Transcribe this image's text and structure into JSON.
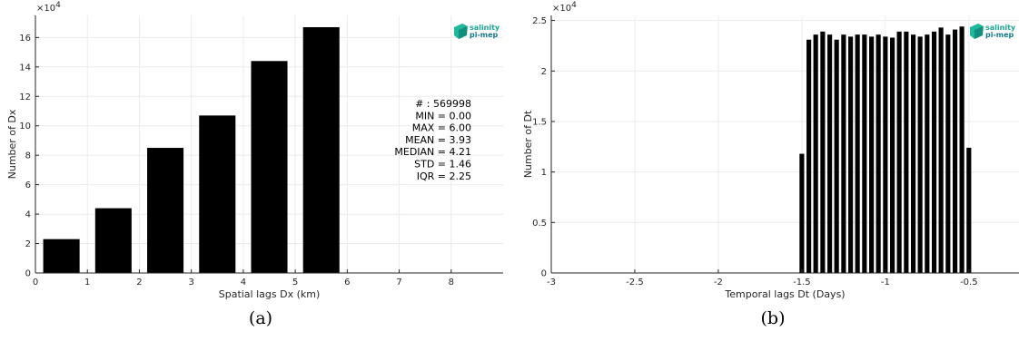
{
  "chart_data": [
    {
      "type": "bar",
      "xlabel": "Spatial lags Dx (km)",
      "ylabel": "Number of Dx",
      "xlim": [
        0,
        9
      ],
      "ylim": [
        0,
        17.5
      ],
      "y_scale_label": "×10",
      "y_scale_exp": "4",
      "x_ticks": [
        0,
        1,
        2,
        3,
        4,
        5,
        6,
        7,
        8
      ],
      "y_ticks": [
        0,
        2,
        4,
        6,
        8,
        10,
        12,
        14,
        16
      ],
      "bar_width": 0.7,
      "grid": true,
      "x": [
        0.5,
        1.5,
        2.5,
        3.5,
        4.5,
        5.5
      ],
      "values": [
        2.3,
        4.4,
        8.5,
        10.7,
        14.4,
        16.7
      ],
      "value_unit_multiplier": 10000,
      "stats": [
        "# : 569998",
        "MIN = 0.00",
        "MAX =  6.00",
        "MEAN = 3.93",
        "MEDIAN = 4.21",
        "STD = 1.46",
        "IQR = 2.25"
      ],
      "logo": [
        "salinity",
        "pi-mep"
      ],
      "caption": "(a)"
    },
    {
      "type": "bar",
      "xlabel": "Temporal lags Dt (Days)",
      "ylabel": "Number of Dt",
      "xlim": [
        -3,
        -0.2
      ],
      "ylim": [
        0,
        2.55
      ],
      "y_scale_label": "×10",
      "y_scale_exp": "4",
      "x_ticks": [
        -3,
        -2.5,
        -2,
        -1.5,
        -1,
        -0.5
      ],
      "x_tick_labels": [
        "-3",
        "-2.5",
        "-2",
        "-1.5",
        "-1",
        "-0.5"
      ],
      "y_ticks": [
        0,
        0.5,
        1,
        1.5,
        2,
        2.5
      ],
      "y_tick_labels": [
        "0",
        "0.5",
        "1",
        "1.5",
        "2",
        "2.5"
      ],
      "bar_width": 0.028,
      "grid": true,
      "x": [
        -1.5,
        -1.458,
        -1.417,
        -1.375,
        -1.333,
        -1.292,
        -1.25,
        -1.208,
        -1.167,
        -1.125,
        -1.083,
        -1.042,
        -1.0,
        -0.958,
        -0.917,
        -0.875,
        -0.833,
        -0.792,
        -0.75,
        -0.708,
        -0.667,
        -0.625,
        -0.583,
        -0.542,
        -0.5
      ],
      "values": [
        1.18,
        2.31,
        2.36,
        2.39,
        2.36,
        2.31,
        2.36,
        2.34,
        2.36,
        2.36,
        2.34,
        2.36,
        2.34,
        2.33,
        2.39,
        2.39,
        2.36,
        2.34,
        2.36,
        2.39,
        2.43,
        2.36,
        2.41,
        2.44,
        1.24
      ],
      "value_unit_multiplier": 10000,
      "logo": [
        "salinity",
        "pi-mep"
      ],
      "caption": "(b)"
    }
  ]
}
